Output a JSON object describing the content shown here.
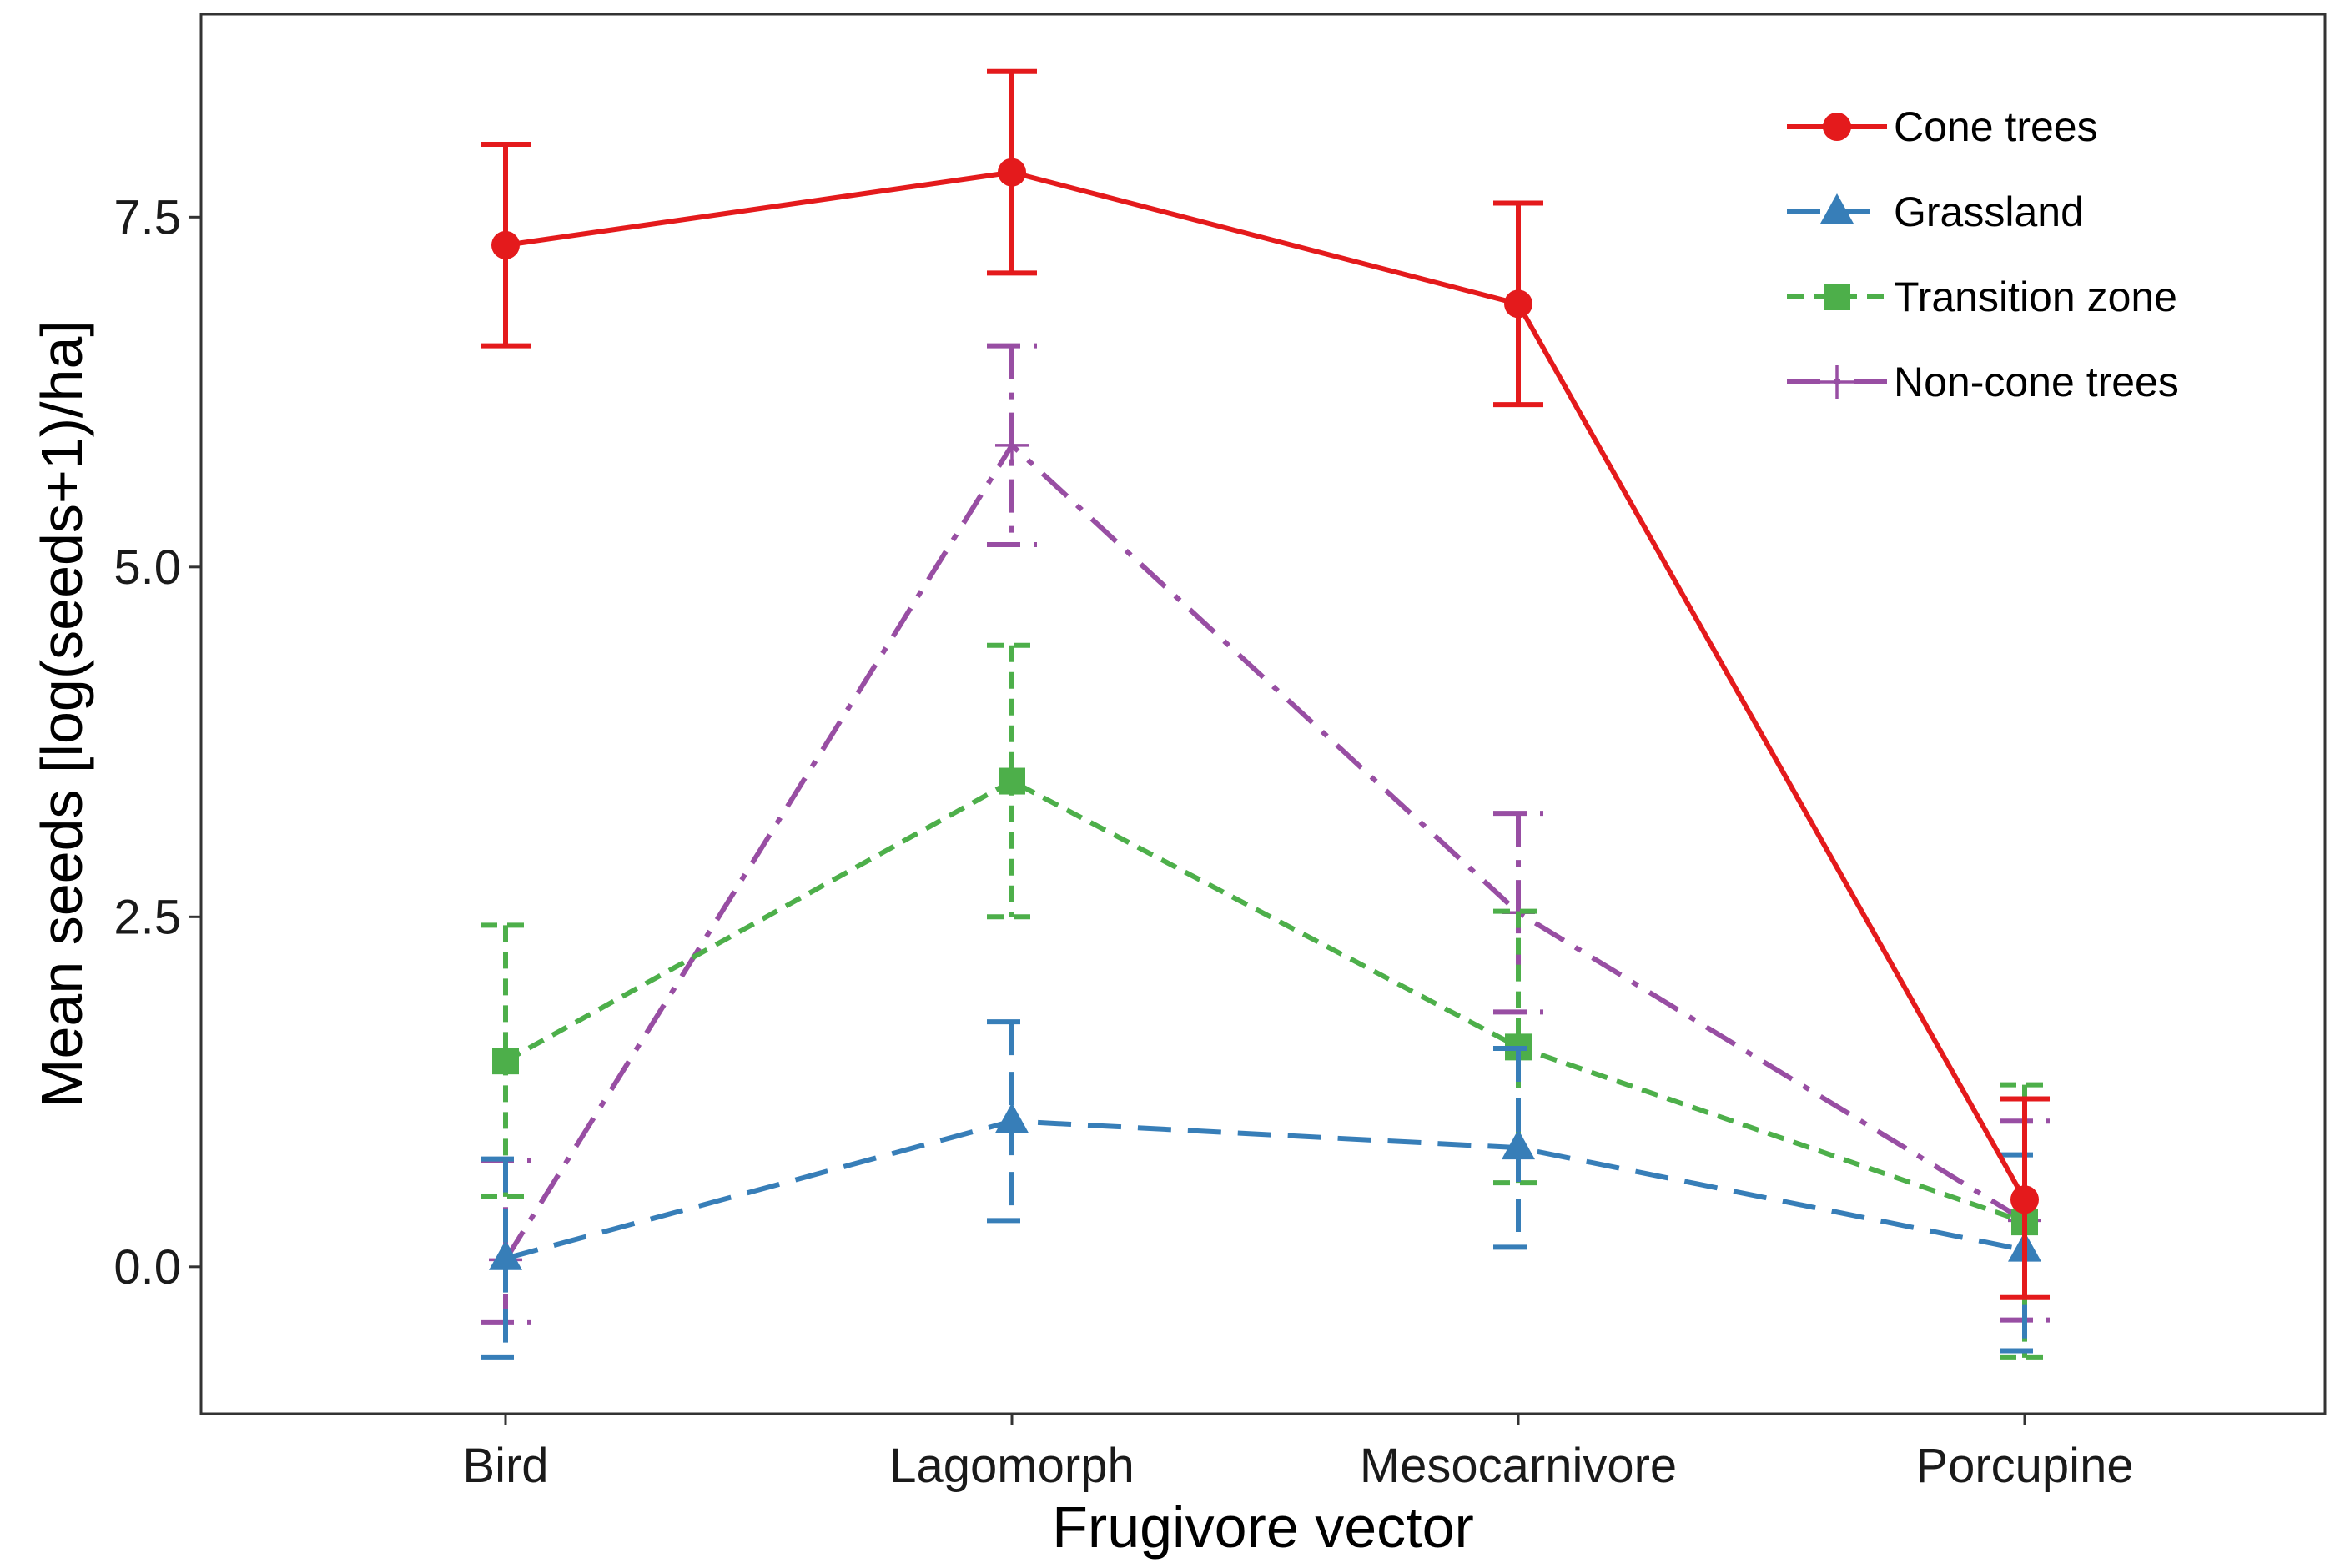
{
  "chart_data": {
    "type": "line",
    "xlabel": "Frugivore vector",
    "ylabel": "Mean seeds [log(seeds+1)/ha]",
    "categories": [
      "Bird",
      "Lagomorph",
      "Mesocarnivore",
      "Porcupine"
    ],
    "ylim": [
      -1.05,
      8.95
    ],
    "yticks": [
      0.0,
      2.5,
      5.0,
      7.5
    ],
    "ytick_labels": [
      "0.0",
      "2.5",
      "5.0",
      "7.5"
    ],
    "grid": false,
    "legend_position": "top-right",
    "series": [
      {
        "name": "Cone trees",
        "color": "#e41a1c",
        "line": "solid",
        "marker": "circle",
        "values": [
          7.3,
          7.82,
          6.88,
          0.48
        ],
        "err_low": [
          6.58,
          7.1,
          6.16,
          -0.22
        ],
        "err_high": [
          8.02,
          8.54,
          7.6,
          1.2
        ]
      },
      {
        "name": "Grassland",
        "color": "#377eb8",
        "line": "longdash",
        "marker": "triangle",
        "values": [
          0.06,
          1.04,
          0.85,
          0.12
        ],
        "err_low": [
          -0.65,
          0.33,
          0.14,
          -0.6
        ],
        "err_high": [
          0.77,
          1.75,
          1.56,
          0.8
        ]
      },
      {
        "name": "Transition zone",
        "color": "#4daf4a",
        "line": "dashed",
        "marker": "square",
        "values": [
          1.47,
          3.47,
          1.57,
          0.32
        ],
        "err_low": [
          0.5,
          2.5,
          0.6,
          -0.65
        ],
        "err_high": [
          2.44,
          4.44,
          2.54,
          1.3
        ]
      },
      {
        "name": "Non-cone trees",
        "color": "#984ea3",
        "line": "dotdash",
        "marker": "cross",
        "values": [
          0.05,
          5.87,
          2.53,
          0.33
        ],
        "err_low": [
          -0.4,
          5.16,
          1.82,
          -0.38
        ],
        "err_high": [
          0.76,
          6.58,
          3.24,
          1.04
        ]
      }
    ]
  }
}
